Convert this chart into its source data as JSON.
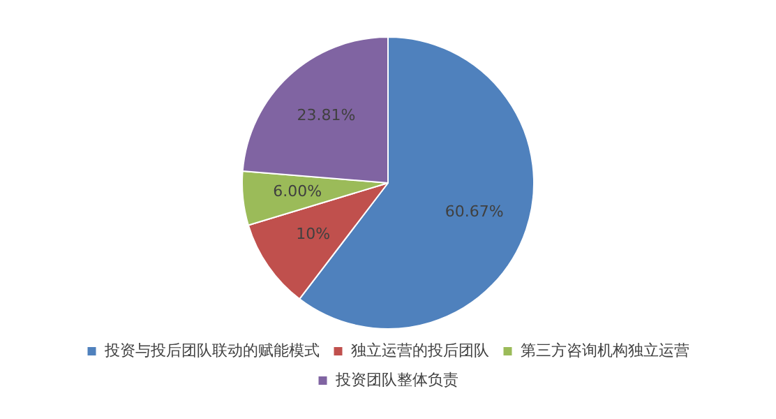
{
  "chart_data": {
    "type": "pie",
    "categories": [
      "投资与投后团队联动的赋能模式",
      "独立运营的投后团队",
      "第三方咨询机构独立运营",
      "投资团队整体负责"
    ],
    "values": [
      60.67,
      10,
      6.0,
      23.81
    ],
    "value_labels": [
      "60.67%",
      "10%",
      "6.00%",
      "23.81%"
    ],
    "colors": [
      "#4f81bd",
      "#c0504d",
      "#9bbb59",
      "#8064a2"
    ],
    "legend": "bottom"
  }
}
